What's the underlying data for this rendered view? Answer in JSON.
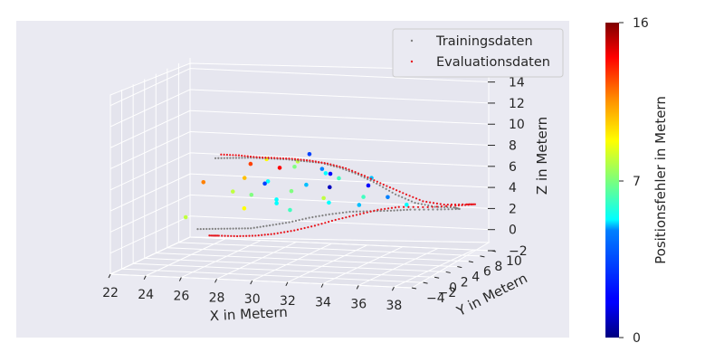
{
  "chart_data": {
    "type": "scatter",
    "projection": "3d",
    "xlabel": "X in Metern",
    "ylabel": "Y in Metern",
    "zlabel": "Z in Metern",
    "x_ticks": [
      "22",
      "24",
      "26",
      "28",
      "30",
      "32",
      "34",
      "36",
      "38"
    ],
    "y_ticks": [
      "−4",
      "−2",
      "0",
      "2",
      "4",
      "6",
      "8",
      "10"
    ],
    "z_ticks": [
      "−2",
      "0",
      "2",
      "4",
      "6",
      "8",
      "10",
      "12",
      "14"
    ],
    "xlim": [
      22,
      39
    ],
    "ylim": [
      -4,
      10
    ],
    "zlim": [
      -2,
      15
    ],
    "grid": true,
    "legend": {
      "placement": "top-right",
      "entries": [
        {
          "label": "Trainingsdaten",
          "color": "#808080"
        },
        {
          "label": "Evaluationsdaten",
          "color": "#e8141b"
        }
      ]
    },
    "colorbar": {
      "label": "Positionsfehler in Metern",
      "range": [
        0,
        16
      ],
      "ticks": [
        "0",
        "7",
        "16"
      ],
      "colormap": "jet"
    },
    "series": [
      {
        "name": "Trainingsdaten",
        "color": "#808080",
        "points": [
          [
            26,
            2,
            7.8
          ],
          [
            27,
            2,
            7.9
          ],
          [
            28,
            2,
            8.0
          ],
          [
            29,
            2,
            8.0
          ],
          [
            30,
            2,
            8.0
          ],
          [
            31,
            2,
            7.9
          ],
          [
            32,
            2,
            7.8
          ],
          [
            33,
            2.1,
            7.4
          ],
          [
            34,
            2.2,
            6.8
          ],
          [
            35,
            2.3,
            6.0
          ],
          [
            36,
            2.5,
            5.0
          ],
          [
            37,
            2.8,
            4.2
          ],
          [
            38,
            3.2,
            3.8
          ],
          [
            38.8,
            4,
            3.6
          ],
          [
            38.8,
            5,
            3.2
          ],
          [
            37.5,
            5.2,
            3.0
          ],
          [
            36,
            5.1,
            2.9
          ],
          [
            35,
            4.8,
            2.8
          ],
          [
            34,
            4.3,
            2.8
          ],
          [
            33,
            3.8,
            2.8
          ],
          [
            32,
            3.3,
            2.6
          ],
          [
            31,
            2.9,
            2.3
          ],
          [
            30,
            2.5,
            1.9
          ],
          [
            29,
            2.2,
            1.6
          ],
          [
            28,
            2.0,
            1.3
          ],
          [
            27,
            2.0,
            1.2
          ],
          [
            26,
            2.0,
            1.1
          ],
          [
            25,
            2.0,
            1.0
          ]
        ]
      },
      {
        "name": "Evaluationsdaten",
        "color": "#e8141b",
        "points": [
          [
            26,
            3,
            7.9
          ],
          [
            27,
            3,
            7.9
          ],
          [
            28,
            3,
            7.8
          ],
          [
            29,
            3,
            7.8
          ],
          [
            30,
            3,
            7.8
          ],
          [
            31,
            3,
            7.7
          ],
          [
            32,
            3,
            7.5
          ],
          [
            33,
            3.1,
            7.1
          ],
          [
            34,
            3.3,
            6.4
          ],
          [
            35,
            3.5,
            5.6
          ],
          [
            36,
            3.8,
            4.8
          ],
          [
            37,
            4.2,
            4.0
          ],
          [
            38,
            4.8,
            3.6
          ],
          [
            39,
            5.6,
            3.5
          ],
          [
            39.2,
            6.5,
            3.3
          ],
          [
            38,
            6.8,
            3.0
          ],
          [
            36.5,
            6.6,
            2.8
          ],
          [
            35,
            6.2,
            2.8
          ],
          [
            34,
            5.6,
            2.6
          ],
          [
            33,
            5.0,
            2.2
          ],
          [
            32,
            4.4,
            1.8
          ],
          [
            31,
            3.9,
            1.3
          ],
          [
            30,
            3.4,
            0.9
          ],
          [
            29,
            3.0,
            0.6
          ],
          [
            28,
            2.8,
            0.4
          ],
          [
            27,
            2.7,
            0.3
          ],
          [
            26,
            2.6,
            0.3
          ],
          [
            25.5,
            2.5,
            0.3
          ]
        ]
      }
    ],
    "error_points": [
      [
        27.5,
        3.5,
        7.0,
        13
      ],
      [
        28.5,
        3.2,
        7.6,
        10
      ],
      [
        30,
        4.0,
        7.3,
        9
      ],
      [
        31.5,
        3.6,
        6.8,
        4
      ],
      [
        30.5,
        4.5,
        7.9,
        3
      ],
      [
        29.5,
        5.0,
        6.5,
        8
      ],
      [
        27,
        4.0,
        5.5,
        11
      ],
      [
        28,
        5.0,
        5.0,
        6
      ],
      [
        30,
        5.5,
        4.7,
        5
      ],
      [
        32,
        5.0,
        5.6,
        7
      ],
      [
        33.5,
        5.5,
        4.9,
        2
      ],
      [
        26.5,
        3.5,
        4.3,
        9
      ],
      [
        29,
        6.0,
        3.9,
        8
      ],
      [
        31,
        6.5,
        4.3,
        1
      ],
      [
        33,
        6.2,
        3.6,
        7
      ],
      [
        34.5,
        5.8,
        3.8,
        4
      ],
      [
        28,
        6.5,
        2.9,
        6
      ],
      [
        30.5,
        7.0,
        3.1,
        9
      ],
      [
        32.5,
        7.0,
        2.6,
        5
      ],
      [
        26.5,
        5.5,
        2.2,
        10
      ],
      [
        29.5,
        4.2,
        2.6,
        7
      ],
      [
        31.5,
        4.8,
        3.3,
        6
      ],
      [
        27.5,
        6.0,
        4.5,
        3
      ],
      [
        35.5,
        6.0,
        3.1,
        6
      ],
      [
        25,
        3.0,
        5.2,
        12
      ],
      [
        24,
        3.0,
        1.8,
        9
      ],
      [
        28.5,
        5.5,
        6.2,
        14
      ],
      [
        31,
        5.8,
        5.8,
        6
      ],
      [
        32,
        3.5,
        6.4,
        2
      ],
      [
        34,
        4.5,
        5.9,
        5
      ],
      [
        29,
        3.4,
        3.4,
        6
      ],
      [
        27,
        5.2,
        3.6,
        8
      ]
    ]
  }
}
